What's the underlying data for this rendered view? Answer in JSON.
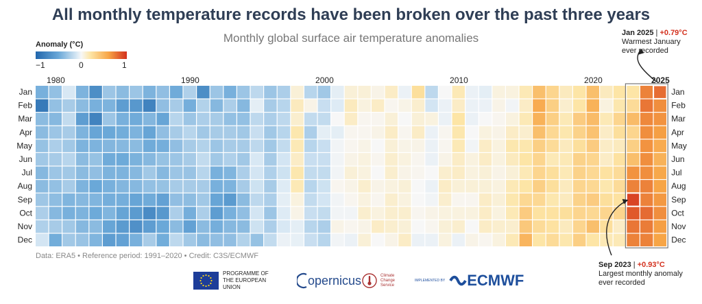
{
  "title": "All monthly temperature records have been broken over the past three years",
  "subtitle": "Monthly global surface air temperature anomalies",
  "legend": {
    "title": "Anomaly (°C)",
    "ticks": [
      "−1",
      "0",
      "1"
    ],
    "colors": [
      "#2166ac",
      "#6aa8d8",
      "#d8e8f4",
      "#f7f7f7",
      "#fde5a6",
      "#f7a546",
      "#d3301d"
    ]
  },
  "footer": "Data: ERA5 • Reference period: 1991–2020 • Credit: C3S/ECMWF",
  "logos": {
    "eu": "PROGRAMME OF THE EUROPEAN UNION",
    "copernicus": "opernicus",
    "c3s": "Climate Change Service",
    "implemented": "IMPLEMENTED BY",
    "ecmwf": "ECMWF"
  },
  "annotations": {
    "jan2025": {
      "head": "Jan 2025",
      "sep": " | ",
      "value": "+0.79°C",
      "line1": "Warmest January",
      "line2": "ever recorded"
    },
    "sep2023": {
      "head": "Sep 2023",
      "sep": " | ",
      "value": "+0.93°C",
      "line1": "Largest monthly anomaly",
      "line2": "ever recorded"
    }
  },
  "chart_data": {
    "type": "heatmap",
    "x_tick_labels": [
      "1980",
      "1990",
      "2000",
      "2010",
      "2020",
      "2025"
    ],
    "x_tick_years": [
      1980,
      1990,
      2000,
      2010,
      2020,
      2025
    ],
    "months": [
      "Jan",
      "Feb",
      "Mar",
      "Apr",
      "May",
      "Jun",
      "Jul",
      "Aug",
      "Sep",
      "Oct",
      "Nov",
      "Dec"
    ],
    "year_start": 1979,
    "year_end": 2025,
    "color_range": [
      -1,
      1
    ],
    "highlighted_years": [
      2023,
      2024,
      2025
    ],
    "highlighted_cells": [
      {
        "year": 2025,
        "month": "Jan",
        "value": 0.79
      },
      {
        "year": 2023,
        "month": "Sep",
        "value": 0.93
      }
    ],
    "values": {
      "1979": [
        -0.45,
        -0.85,
        -0.38,
        -0.38,
        -0.34,
        -0.3,
        -0.4,
        -0.38,
        -0.31,
        -0.26,
        -0.25,
        -0.12
      ],
      "1980": [
        -0.35,
        -0.35,
        -0.4,
        -0.32,
        -0.26,
        -0.28,
        -0.32,
        -0.35,
        -0.37,
        -0.4,
        -0.28,
        -0.47
      ],
      "1981": [
        -0.1,
        -0.28,
        -0.18,
        -0.28,
        -0.3,
        -0.22,
        -0.3,
        -0.28,
        -0.42,
        -0.45,
        -0.3,
        -0.3
      ],
      "1982": [
        -0.43,
        -0.38,
        -0.58,
        -0.43,
        -0.43,
        -0.38,
        -0.38,
        -0.43,
        -0.4,
        -0.43,
        -0.4,
        -0.33
      ],
      "1983": [
        -0.7,
        -0.45,
        -0.78,
        -0.52,
        -0.43,
        -0.34,
        -0.36,
        -0.5,
        -0.42,
        -0.49,
        -0.38,
        -0.42
      ],
      "1984": [
        -0.32,
        -0.43,
        -0.32,
        -0.5,
        -0.41,
        -0.48,
        -0.43,
        -0.45,
        -0.46,
        -0.42,
        -0.52,
        -0.58
      ],
      "1985": [
        -0.38,
        -0.58,
        -0.45,
        -0.47,
        -0.4,
        -0.49,
        -0.43,
        -0.41,
        -0.46,
        -0.53,
        -0.6,
        -0.55
      ],
      "1986": [
        -0.32,
        -0.62,
        -0.48,
        -0.43,
        -0.38,
        -0.44,
        -0.4,
        -0.4,
        -0.52,
        -0.6,
        -0.68,
        -0.45
      ],
      "1987": [
        -0.43,
        -0.78,
        -0.41,
        -0.52,
        -0.48,
        -0.4,
        -0.3,
        -0.35,
        -0.48,
        -0.72,
        -0.58,
        -0.28
      ],
      "1988": [
        -0.36,
        -0.36,
        -0.52,
        -0.36,
        -0.46,
        -0.34,
        -0.4,
        -0.34,
        -0.55,
        -0.62,
        -0.5,
        -0.47
      ],
      "1989": [
        -0.48,
        -0.28,
        -0.22,
        -0.28,
        -0.36,
        -0.32,
        -0.32,
        -0.28,
        -0.36,
        -0.26,
        -0.38,
        -0.2
      ],
      "1990": [
        -0.25,
        -0.46,
        -0.32,
        -0.22,
        -0.28,
        -0.28,
        -0.33,
        -0.28,
        -0.37,
        -0.46,
        -0.55,
        -0.3
      ],
      "1991": [
        -0.7,
        -0.24,
        -0.26,
        -0.3,
        -0.24,
        -0.18,
        -0.22,
        -0.28,
        -0.3,
        -0.26,
        -0.38,
        -0.38
      ],
      "1992": [
        -0.32,
        -0.4,
        -0.28,
        -0.28,
        -0.32,
        -0.3,
        -0.45,
        -0.45,
        -0.52,
        -0.58,
        -0.46,
        -0.36
      ],
      "1993": [
        -0.45,
        -0.26,
        -0.35,
        -0.28,
        -0.28,
        -0.25,
        -0.42,
        -0.43,
        -0.6,
        -0.45,
        -0.4,
        -0.36
      ],
      "1994": [
        -0.32,
        -0.4,
        -0.35,
        -0.3,
        -0.28,
        -0.3,
        -0.26,
        -0.28,
        -0.38,
        -0.36,
        -0.38,
        -0.24
      ],
      "1995": [
        -0.2,
        -0.06,
        -0.2,
        -0.16,
        -0.2,
        -0.1,
        -0.12,
        -0.14,
        -0.2,
        -0.12,
        -0.14,
        -0.34
      ],
      "1996": [
        -0.32,
        -0.28,
        -0.26,
        -0.3,
        -0.3,
        -0.28,
        -0.25,
        -0.28,
        -0.26,
        -0.32,
        -0.26,
        -0.18
      ],
      "1997": [
        -0.26,
        -0.22,
        -0.2,
        -0.22,
        -0.18,
        -0.12,
        -0.14,
        -0.08,
        -0.06,
        -0.08,
        -0.1,
        -0.04
      ],
      "1998": [
        0.08,
        0.14,
        0.1,
        0.18,
        0.16,
        0.12,
        0.18,
        0.16,
        0.06,
        0.04,
        -0.06,
        -0.05
      ],
      "1999": [
        -0.22,
        0.04,
        -0.18,
        -0.26,
        -0.22,
        -0.16,
        -0.18,
        -0.22,
        -0.18,
        -0.16,
        -0.22,
        -0.16
      ],
      "2000": [
        -0.3,
        -0.16,
        -0.18,
        -0.06,
        -0.16,
        -0.16,
        -0.18,
        -0.14,
        -0.12,
        -0.18,
        -0.26,
        -0.22
      ],
      "2001": [
        -0.06,
        -0.08,
        0.0,
        -0.06,
        -0.02,
        -0.02,
        -0.02,
        0.02,
        -0.02,
        -0.02,
        0.04,
        -0.02
      ],
      "2002": [
        0.08,
        0.14,
        0.12,
        0.02,
        0.02,
        0.04,
        0.08,
        0.04,
        0.02,
        -0.02,
        0.02,
        -0.04
      ],
      "2003": [
        0.08,
        0.06,
        0.02,
        0.02,
        0.04,
        0.06,
        0.06,
        0.1,
        0.06,
        0.1,
        0.04,
        0.08
      ],
      "2004": [
        0.04,
        0.12,
        0.02,
        0.04,
        0.0,
        0.02,
        0.0,
        0.04,
        0.02,
        0.06,
        0.12,
        0.0
      ],
      "2005": [
        0.12,
        0.02,
        0.08,
        0.12,
        0.08,
        0.1,
        0.1,
        0.06,
        0.1,
        0.1,
        0.1,
        0.04
      ],
      "2006": [
        -0.04,
        0.04,
        0.0,
        0.02,
        0.04,
        0.06,
        0.04,
        0.08,
        0.06,
        0.1,
        0.08,
        0.12
      ],
      "2007": [
        0.24,
        0.1,
        0.08,
        0.12,
        0.04,
        0.02,
        0.02,
        0.0,
        0.0,
        0.02,
        0.0,
        -0.04
      ],
      "2008": [
        -0.2,
        -0.12,
        0.06,
        -0.04,
        -0.04,
        -0.04,
        0.0,
        -0.04,
        -0.02,
        0.04,
        0.02,
        -0.04
      ],
      "2009": [
        0.0,
        -0.04,
        -0.04,
        0.02,
        0.02,
        0.04,
        0.1,
        0.12,
        0.1,
        0.06,
        0.08,
        0.06
      ],
      "2010": [
        0.16,
        0.12,
        0.2,
        0.18,
        0.16,
        0.12,
        0.12,
        0.08,
        0.02,
        0.06,
        0.1,
        -0.04
      ],
      "2011": [
        -0.04,
        -0.04,
        -0.04,
        0.0,
        -0.02,
        0.06,
        0.06,
        0.08,
        0.02,
        0.06,
        0.0,
        0.04
      ],
      "2012": [
        -0.06,
        -0.04,
        0.0,
        0.06,
        0.12,
        0.12,
        0.08,
        0.08,
        0.12,
        0.12,
        0.12,
        0.02
      ],
      "2013": [
        0.06,
        0.04,
        0.02,
        0.04,
        0.06,
        0.06,
        0.04,
        0.06,
        0.08,
        0.06,
        0.1,
        0.06
      ],
      "2014": [
        0.06,
        -0.02,
        0.06,
        0.12,
        0.18,
        0.14,
        0.08,
        0.16,
        0.18,
        0.16,
        0.1,
        0.16
      ],
      "2015": [
        0.16,
        0.12,
        0.16,
        0.1,
        0.18,
        0.2,
        0.16,
        0.2,
        0.28,
        0.36,
        0.38,
        0.5
      ],
      "2016": [
        0.44,
        0.56,
        0.52,
        0.44,
        0.34,
        0.3,
        0.3,
        0.34,
        0.28,
        0.22,
        0.26,
        0.2
      ],
      "2017": [
        0.3,
        0.34,
        0.34,
        0.28,
        0.26,
        0.16,
        0.24,
        0.24,
        0.18,
        0.22,
        0.22,
        0.26
      ],
      "2018": [
        0.14,
        0.1,
        0.16,
        0.18,
        0.14,
        0.16,
        0.16,
        0.14,
        0.14,
        0.24,
        0.14,
        0.18
      ],
      "2019": [
        0.2,
        0.2,
        0.36,
        0.32,
        0.24,
        0.32,
        0.32,
        0.3,
        0.32,
        0.3,
        0.3,
        0.34
      ],
      "2020": [
        0.44,
        0.52,
        0.46,
        0.42,
        0.36,
        0.3,
        0.28,
        0.28,
        0.36,
        0.28,
        0.44,
        0.2
      ],
      "2021": [
        0.14,
        0.06,
        0.16,
        0.12,
        0.12,
        0.12,
        0.22,
        0.18,
        0.24,
        0.3,
        0.24,
        0.16
      ],
      "2022": [
        0.2,
        0.18,
        0.3,
        0.24,
        0.14,
        0.22,
        0.26,
        0.26,
        0.22,
        0.3,
        0.12,
        0.16
      ],
      "2023": [
        0.2,
        0.26,
        0.46,
        0.3,
        0.34,
        0.44,
        0.66,
        0.72,
        0.93,
        0.86,
        0.76,
        0.72
      ],
      "2024": [
        0.72,
        0.76,
        0.7,
        0.68,
        0.66,
        0.68,
        0.68,
        0.72,
        0.72,
        0.8,
        0.74,
        0.72
      ],
      "2025": [
        0.79,
        0.68,
        0.66,
        0.62,
        0.56,
        0.52,
        0.58,
        0.6,
        0.64,
        0.68,
        0.62,
        0.6
      ]
    }
  }
}
